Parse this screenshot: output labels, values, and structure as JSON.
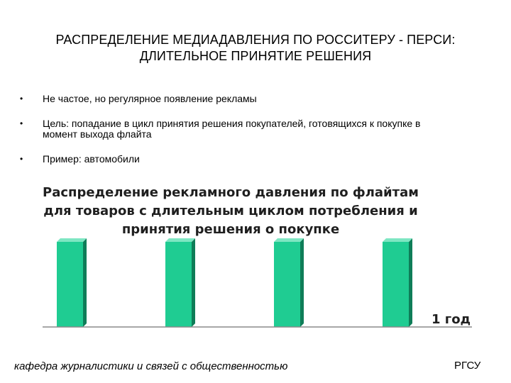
{
  "slide": {
    "title_line1": "РАСПРЕДЕЛЕНИЕ МЕДИАДАВЛЕНИЯ ПО  РОССИТЕРУ - ПЕРСИ:",
    "title_line2": "ДЛИТЕЛЬНОЕ ПРИНЯТИЕ РЕШЕНИЯ",
    "bullets": [
      {
        "marker": "•",
        "line1": "Не частое, но регулярное появление рекламы",
        "line2": ""
      },
      {
        "marker": "•",
        "line1": "Цель: попадание в цикл принятия решения покупателей, готовящихся к покупке в",
        "line2": "момент выхода флайта"
      },
      {
        "marker": "•",
        "line1": "Пример: автомобили",
        "line2": ""
      }
    ]
  },
  "chart_data": {
    "type": "bar",
    "title_lines": [
      "Распределение рекламного давления по флайтам",
      "для товаров с длительным циклом потребления и",
      "принятия решения о покупке"
    ],
    "categories": [
      "",
      "",
      "",
      ""
    ],
    "values": [
      1,
      1,
      1,
      1
    ],
    "period_label": "1 год",
    "colors": {
      "bar_front": "#1fcc92",
      "bar_side": "#0f7d58",
      "bar_top": "#7ee6c2",
      "axis": "#8a8a8a"
    }
  },
  "footer": {
    "left": "кафедра журналистики и связей с общественностью",
    "right": "РГСУ"
  }
}
